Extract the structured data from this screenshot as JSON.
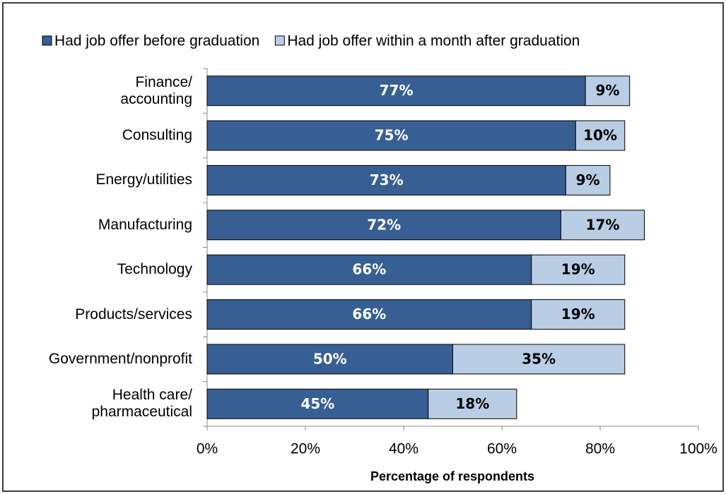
{
  "chart_data": {
    "type": "stacked_bar_horizontal",
    "x_label": "Percentage of respondents",
    "categories": [
      "Finance/\naccounting",
      "Consulting",
      "Energy/utilities",
      "Manufacturing",
      "Technology",
      "Products/services",
      "Government/nonprofit",
      "Health care/\npharmaceutical"
    ],
    "series": [
      {
        "name": "Had job offer before graduation",
        "color": "#375f93",
        "label_color": "#ffffff",
        "values": [
          77,
          75,
          73,
          72,
          66,
          66,
          50,
          45
        ],
        "value_labels": [
          "77%",
          "75%",
          "73%",
          "72%",
          "66%",
          "66%",
          "50%",
          "45%"
        ]
      },
      {
        "name": "Had job offer within a month after graduation",
        "color": "#b9cde5",
        "label_color": "#000000",
        "values": [
          9,
          10,
          9,
          17,
          19,
          19,
          35,
          18
        ],
        "value_labels": [
          "9%",
          "10%",
          "9%",
          "17%",
          "19%",
          "19%",
          "35%",
          "18%"
        ]
      }
    ],
    "xlim": [
      0,
      100
    ],
    "xticks": [
      {
        "value": 0,
        "label": "0%"
      },
      {
        "value": 20,
        "label": "20%"
      },
      {
        "value": 40,
        "label": "40%"
      },
      {
        "value": 60,
        "label": "60%"
      },
      {
        "value": 80,
        "label": "80%"
      },
      {
        "value": 100,
        "label": "100%"
      }
    ],
    "legend": "top"
  }
}
